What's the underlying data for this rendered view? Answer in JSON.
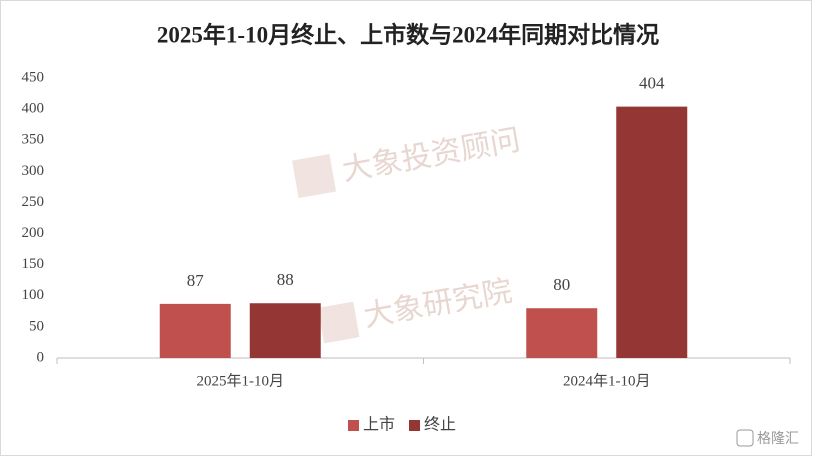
{
  "chart_data": {
    "type": "bar",
    "title": "2025年1-10月终止、上市数与2024年同期对比情况",
    "categories": [
      "2025年1-10月",
      "2024年1-10月"
    ],
    "series": [
      {
        "name": "上市",
        "color": "#c0504d",
        "values": [
          87,
          80
        ]
      },
      {
        "name": "终止",
        "color": "#943634",
        "values": [
          88,
          404
        ]
      }
    ],
    "ylim": [
      0,
      450
    ],
    "yticks": [
      0,
      50,
      100,
      150,
      200,
      250,
      300,
      350,
      400,
      450
    ],
    "grid": false,
    "legend": "bottom",
    "watermarks": [
      "大象投资顾问",
      "大象研究院",
      "格隆汇"
    ]
  }
}
